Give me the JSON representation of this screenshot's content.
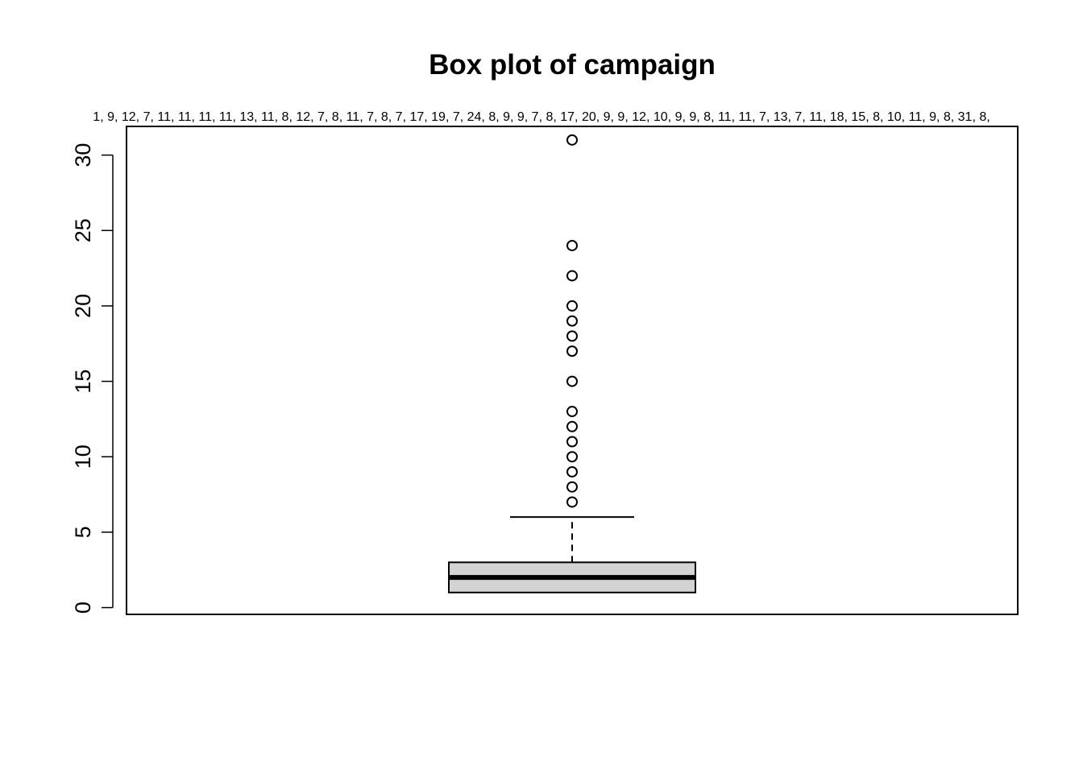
{
  "chart_data": {
    "type": "box",
    "title": "Box plot of campaign",
    "subtitle": "1, 9, 12, 7, 11, 11, 11, 11, 13, 11, 8, 12, 7, 8, 11, 7, 8, 7, 17, 19, 7, 24, 8, 9, 9, 7, 8, 17, 20, 9, 9, 12, 10, 9, 9, 8, 11, 11, 7, 13, 7, 11, 18, 15, 8, 10, 11, 9, 8, 31, 8,",
    "xlabel": "",
    "ylabel": "",
    "ylim": [
      -0.45,
      31.9
    ],
    "yticks": [
      0,
      5,
      10,
      15,
      20,
      25,
      30
    ],
    "ytick_labels": [
      "0",
      "5",
      "10",
      "15",
      "20",
      "25",
      "30"
    ],
    "box": {
      "min": 1,
      "q1": 1,
      "median": 2,
      "q3": 3,
      "whisker_high": 6
    },
    "outliers": [
      7,
      8,
      9,
      10,
      11,
      12,
      13,
      15,
      17,
      18,
      19,
      20,
      22,
      24,
      31
    ],
    "box_color": "#d3d3d3",
    "grid": false
  }
}
